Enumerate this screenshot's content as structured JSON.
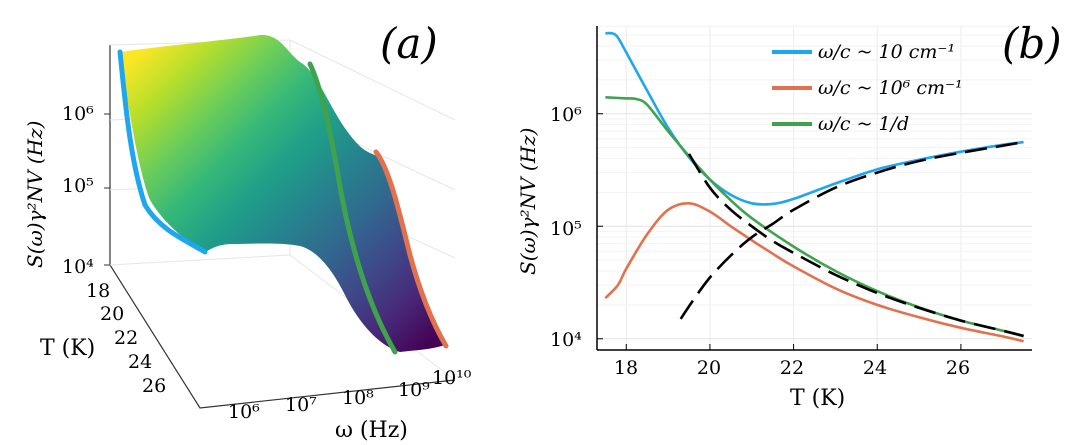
{
  "chart_data": [
    {
      "panel": "a",
      "type": "surface3d",
      "panel_label": "(a)",
      "xlabel": "ω (Hz)",
      "ylabel": "T (K)",
      "zlabel": "S(ω)γ²NV (Hz)",
      "x_ticks": [
        "10⁶",
        "10⁷",
        "10⁸",
        "10⁹",
        "10¹⁰"
      ],
      "y_ticks": [
        "18",
        "20",
        "22",
        "24",
        "26"
      ],
      "z_ticks": [
        "10⁴",
        "10⁵",
        "10⁶"
      ],
      "colormap": [
        "#fde725",
        "#b5de2b",
        "#6ece58",
        "#35b779",
        "#1f9e89",
        "#26828e",
        "#31688e",
        "#3e4989",
        "#482878",
        "#440154"
      ],
      "highlighted_edges": [
        {
          "name": "ω/c ~ 10 cm⁻¹",
          "color": "#1ea7ef"
        },
        {
          "name": "ω/c ~ 1/d",
          "color": "#3fa34d"
        },
        {
          "name": "ω/c ~ 10⁶ cm⁻¹",
          "color": "#e2714d"
        }
      ]
    },
    {
      "panel": "b",
      "type": "line",
      "panel_label": "(b)",
      "xlabel": "T (K)",
      "ylabel": "S(ω)γ²NV (Hz)",
      "xlim": [
        17.3,
        27.7
      ],
      "ylim_log10": [
        3.9,
        6.78
      ],
      "x_ticks": [
        "18",
        "20",
        "22",
        "24",
        "26"
      ],
      "y_ticks": [
        "10⁴",
        "10⁵",
        "10⁶"
      ],
      "legend_position": "top-right",
      "series": [
        {
          "name": "ω/c ~ 10 cm⁻¹",
          "color": "#1ea7ef",
          "dash": "solid",
          "x": [
            17.5,
            17.75,
            18.0,
            18.5,
            19.0,
            19.5,
            20.0,
            20.5,
            21.0,
            21.5,
            22.0,
            23.0,
            24.0,
            25.0,
            26.0,
            27.0,
            27.5
          ],
          "y": [
            5200000,
            5000000,
            3500000,
            1600000,
            750000,
            410000,
            260000,
            190000,
            160000,
            158000,
            175000,
            240000,
            320000,
            390000,
            460000,
            530000,
            560000
          ]
        },
        {
          "name": "ω/c ~ 10⁶ cm⁻¹",
          "color": "#e2714d",
          "dash": "solid",
          "x": [
            17.5,
            17.8,
            18.0,
            18.5,
            19.0,
            19.5,
            20.0,
            20.5,
            21.0,
            21.5,
            22.0,
            23.0,
            24.0,
            25.0,
            26.0,
            27.0,
            27.5
          ],
          "y": [
            23000,
            30000,
            42000,
            85000,
            140000,
            160000,
            135000,
            100000,
            75000,
            57000,
            44000,
            28000,
            20000,
            15500,
            12500,
            10500,
            9500
          ]
        },
        {
          "name": "ω/c ~ 1/d",
          "color": "#3fa34d",
          "dash": "solid",
          "x": [
            17.5,
            18.0,
            18.25,
            18.5,
            19.0,
            19.5,
            20.0,
            20.5,
            21.0,
            22.0,
            23.0,
            24.0,
            25.0,
            26.0,
            27.0,
            27.5
          ],
          "y": [
            1400000,
            1370000,
            1350000,
            1200000,
            700000,
            420000,
            260000,
            170000,
            118000,
            66000,
            40000,
            26500,
            19000,
            14500,
            11800,
            10500
          ]
        },
        {
          "name": "",
          "color": "#000000",
          "dash": "long",
          "x": [
            19.3,
            19.6,
            20.0,
            20.5,
            21.0,
            21.5,
            22.0,
            23.0,
            24.0,
            25.0,
            26.0,
            27.0,
            27.5
          ],
          "y": [
            15000,
            22000,
            35000,
            55000,
            80000,
            105000,
            140000,
            220000,
            300000,
            380000,
            450000,
            520000,
            560000
          ]
        },
        {
          "name": "",
          "color": "#000000",
          "dash": "long",
          "x": [
            19.5,
            20.0,
            20.5,
            21.0,
            21.5,
            22.0,
            23.0,
            24.0,
            25.0,
            26.0,
            27.0,
            27.5
          ],
          "y": [
            440000,
            220000,
            140000,
            100000,
            74000,
            58000,
            37000,
            25500,
            18800,
            14500,
            11800,
            10600
          ]
        }
      ],
      "legend": [
        {
          "label": "ω/c ~ 10 cm⁻¹",
          "color": "#1ea7ef"
        },
        {
          "label": "ω/c ~ 10⁶ cm⁻¹",
          "color": "#e2714d"
        },
        {
          "label": "ω/c ~ 1/d",
          "color": "#3fa34d"
        }
      ]
    }
  ]
}
